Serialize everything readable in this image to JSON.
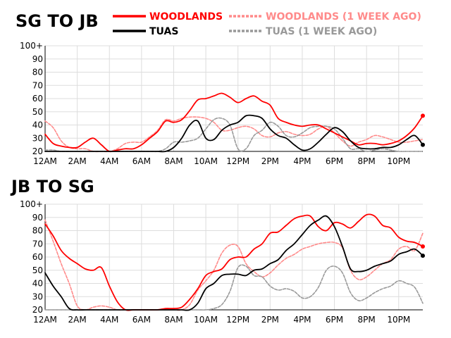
{
  "legend": [
    {
      "label": "WOODLANDS",
      "color": "#ff0000",
      "dash": false
    },
    {
      "label": "TUAS",
      "color": "#000000",
      "dash": false
    },
    {
      "label": "WOODLANDS (1 WEEK AGO)",
      "color": "#ff8a8a",
      "dash": true
    },
    {
      "label": "TUAS (1 WEEK AGO)",
      "color": "#999999",
      "dash": true
    }
  ],
  "chart_data": [
    {
      "type": "line",
      "title": "SG TO JB",
      "xlabel": "",
      "ylabel": "",
      "xlim": [
        0,
        23.5
      ],
      "ylim": [
        20,
        100
      ],
      "grid": true,
      "yticks": [
        "20",
        "30",
        "40",
        "50",
        "60",
        "70",
        "80",
        "90",
        "100+"
      ],
      "xticks": [
        "12AM",
        "2AM",
        "4AM",
        "6AM",
        "8AM",
        "10AM",
        "12PM",
        "2PM",
        "4PM",
        "6PM",
        "8PM",
        "10PM"
      ],
      "series": [
        {
          "name": "WOODLANDS",
          "color": "#ff0000",
          "dash": false,
          "end_dot": true,
          "x": [
            0,
            0.5,
            1,
            1.5,
            2,
            2.5,
            3,
            3.5,
            4,
            4.5,
            5,
            5.5,
            6,
            6.5,
            7,
            7.5,
            8,
            8.5,
            9,
            9.5,
            10,
            10.5,
            11,
            11.5,
            12,
            12.5,
            13,
            13.5,
            14,
            14.5,
            15,
            15.5,
            16,
            16.5,
            17,
            17.5,
            18,
            18.5,
            19,
            19.5,
            20,
            20.5,
            21,
            21.5,
            22,
            22.5,
            23,
            23.5
          ],
          "y": [
            33,
            26,
            24,
            23,
            23,
            27,
            30,
            25,
            20,
            21,
            22,
            22,
            25,
            30,
            35,
            43,
            42,
            44,
            51,
            59,
            60,
            62,
            64,
            61,
            57,
            60,
            62,
            58,
            55,
            45,
            42,
            40,
            39,
            40,
            40,
            37,
            34,
            31,
            28,
            25,
            26,
            26,
            25,
            26,
            28,
            32,
            38,
            47
          ]
        },
        {
          "name": "TUAS",
          "color": "#000000",
          "dash": false,
          "end_dot": true,
          "x": [
            0,
            0.5,
            1,
            1.5,
            2,
            2.5,
            3,
            3.5,
            4,
            4.5,
            5,
            5.5,
            6,
            6.5,
            7,
            7.5,
            8,
            8.5,
            9,
            9.5,
            10,
            10.5,
            11,
            11.5,
            12,
            12.5,
            13,
            13.5,
            14,
            14.5,
            15,
            15.5,
            16,
            16.5,
            17,
            17.5,
            18,
            18.5,
            19,
            19.5,
            20,
            20.5,
            21,
            21.5,
            22,
            22.5,
            23,
            23.5
          ],
          "y": [
            20,
            20,
            20,
            20,
            20,
            20,
            20,
            20,
            20,
            20,
            20,
            20,
            20,
            20,
            20,
            20,
            23,
            30,
            40,
            43,
            30,
            29,
            36,
            40,
            42,
            47,
            47,
            45,
            37,
            32,
            30,
            25,
            21,
            22,
            27,
            33,
            38,
            35,
            28,
            23,
            22,
            22,
            23,
            23,
            25,
            29,
            32,
            25
          ]
        },
        {
          "name": "WOODLANDS (1 WEEK AGO)",
          "color": "#ff8a8a",
          "dash": true,
          "end_dot": false,
          "x": [
            0,
            0.5,
            1,
            1.5,
            2,
            2.5,
            3,
            3.5,
            4,
            4.5,
            5,
            5.5,
            6,
            6.5,
            7,
            7.5,
            8,
            8.5,
            9,
            9.5,
            10,
            10.5,
            11,
            11.5,
            12,
            12.5,
            13,
            13.5,
            14,
            14.5,
            15,
            15.5,
            16,
            16.5,
            17,
            17.5,
            18,
            18.5,
            19,
            19.5,
            20,
            20.5,
            21,
            21.5,
            22,
            22.5,
            23,
            23.5
          ],
          "y": [
            43,
            38,
            28,
            23,
            22,
            22,
            20,
            20,
            20,
            22,
            26,
            27,
            27,
            31,
            36,
            44,
            43,
            45,
            46,
            46,
            45,
            42,
            36,
            36,
            38,
            39,
            37,
            32,
            31,
            34,
            35,
            33,
            32,
            33,
            37,
            39,
            34,
            28,
            24,
            27,
            29,
            32,
            31,
            29,
            27,
            27,
            28,
            29
          ]
        },
        {
          "name": "TUAS (1 WEEK AGO)",
          "color": "#999999",
          "dash": true,
          "end_dot": false,
          "x": [
            0,
            0.5,
            1,
            1.5,
            2,
            2.5,
            3,
            3.5,
            4,
            4.5,
            5,
            5.5,
            6,
            6.5,
            7,
            7.5,
            8,
            8.5,
            9,
            9.5,
            10,
            10.5,
            11,
            11.5,
            12,
            12.5,
            13,
            13.5,
            14,
            14.5,
            15,
            15.5,
            16,
            16.5,
            17,
            17.5,
            18,
            18.5,
            19,
            19.5,
            20,
            20.5,
            21,
            21.5,
            22,
            22.5,
            23,
            23.5
          ],
          "y": [
            21,
            21,
            20,
            20,
            20,
            20,
            20,
            20,
            20,
            20,
            20,
            20,
            20,
            20,
            20,
            22,
            27,
            27,
            28,
            30,
            37,
            44,
            45,
            40,
            22,
            22,
            32,
            36,
            42,
            39,
            32,
            31,
            34,
            38,
            39,
            39,
            37,
            30,
            22,
            22,
            20,
            21,
            22,
            21,
            20,
            20,
            20,
            20
          ]
        }
      ]
    },
    {
      "type": "line",
      "title": "JB TO SG",
      "xlabel": "",
      "ylabel": "",
      "xlim": [
        0,
        23.5
      ],
      "ylim": [
        20,
        100
      ],
      "grid": true,
      "yticks": [
        "20",
        "30",
        "40",
        "50",
        "60",
        "70",
        "80",
        "90",
        "100+"
      ],
      "xticks": [
        "12AM",
        "2AM",
        "4AM",
        "6AM",
        "8AM",
        "10AM",
        "12PM",
        "2PM",
        "4PM",
        "6PM",
        "8PM",
        "10PM"
      ],
      "series": [
        {
          "name": "WOODLANDS",
          "color": "#ff0000",
          "dash": false,
          "end_dot": true,
          "x": [
            0,
            0.5,
            1,
            1.5,
            2,
            2.5,
            3,
            3.5,
            4,
            4.5,
            5,
            5.5,
            6,
            6.5,
            7,
            7.5,
            8,
            8.5,
            9,
            9.5,
            10,
            10.5,
            11,
            11.5,
            12,
            12.5,
            13,
            13.5,
            14,
            14.5,
            15,
            15.5,
            16,
            16.5,
            17,
            17.5,
            18,
            18.5,
            19,
            19.5,
            20,
            20.5,
            21,
            21.5,
            22,
            22.5,
            23,
            23.5
          ],
          "y": [
            85,
            76,
            65,
            59,
            55,
            51,
            50,
            52,
            38,
            26,
            20,
            20,
            20,
            20,
            20,
            21,
            21,
            22,
            28,
            36,
            46,
            49,
            51,
            58,
            60,
            60,
            66,
            70,
            78,
            79,
            84,
            89,
            91,
            91,
            83,
            80,
            86,
            85,
            82,
            87,
            92,
            91,
            84,
            82,
            75,
            72,
            71,
            68
          ]
        },
        {
          "name": "TUAS",
          "color": "#000000",
          "dash": false,
          "end_dot": true,
          "x": [
            0,
            0.5,
            1,
            1.5,
            2,
            2.5,
            3,
            3.5,
            4,
            4.5,
            5,
            5.5,
            6,
            6.5,
            7,
            7.5,
            8,
            8.5,
            9,
            9.5,
            10,
            10.5,
            11,
            11.5,
            12,
            12.5,
            13,
            13.5,
            14,
            14.5,
            15,
            15.5,
            16,
            16.5,
            17,
            17.5,
            18,
            18.5,
            19,
            19.5,
            20,
            20.5,
            21,
            21.5,
            22,
            22.5,
            23,
            23.5
          ],
          "y": [
            48,
            38,
            30,
            21,
            20,
            20,
            20,
            20,
            20,
            20,
            20,
            20,
            20,
            20,
            20,
            20,
            20,
            20,
            20,
            25,
            36,
            40,
            46,
            47,
            47,
            46,
            50,
            51,
            55,
            58,
            65,
            70,
            77,
            84,
            88,
            91,
            83,
            68,
            51,
            49,
            50,
            53,
            55,
            57,
            62,
            64,
            66,
            61
          ]
        },
        {
          "name": "WOODLANDS (1 WEEK AGO)",
          "color": "#ff8a8a",
          "dash": true,
          "end_dot": false,
          "x": [
            0,
            0.5,
            1,
            1.5,
            2,
            2.5,
            3,
            3.5,
            4,
            4.5,
            5,
            5.5,
            6,
            6.5,
            7,
            7.5,
            8,
            8.5,
            9,
            9.5,
            10,
            10.5,
            11,
            11.5,
            12,
            12.5,
            13,
            13.5,
            14,
            14.5,
            15,
            15.5,
            16,
            16.5,
            17,
            17.5,
            18,
            18.5,
            19,
            19.5,
            20,
            20.5,
            21,
            21.5,
            22,
            22.5,
            23,
            23.5
          ],
          "y": [
            88,
            72,
            55,
            40,
            23,
            20,
            22,
            23,
            22,
            20,
            20,
            20,
            20,
            20,
            20,
            20,
            20,
            20,
            24,
            35,
            42,
            50,
            63,
            69,
            68,
            55,
            49,
            45,
            48,
            54,
            59,
            62,
            66,
            68,
            70,
            71,
            71,
            67,
            50,
            43,
            45,
            50,
            55,
            58,
            66,
            68,
            65,
            78
          ]
        },
        {
          "name": "TUAS (1 WEEK AGO)",
          "color": "#999999",
          "dash": true,
          "end_dot": false,
          "x": [
            0,
            0.5,
            1,
            1.5,
            2,
            2.5,
            3,
            3.5,
            4,
            4.5,
            5,
            5.5,
            6,
            6.5,
            7,
            7.5,
            8,
            8.5,
            9,
            9.5,
            10,
            10.5,
            11,
            11.5,
            12,
            12.5,
            13,
            13.5,
            14,
            14.5,
            15,
            15.5,
            16,
            16.5,
            17,
            17.5,
            18,
            18.5,
            19,
            19.5,
            20,
            20.5,
            21,
            21.5,
            22,
            22.5,
            23,
            23.5
          ],
          "y": [
            20,
            20,
            20,
            20,
            20,
            20,
            20,
            20,
            20,
            20,
            20,
            20,
            20,
            20,
            20,
            20,
            20,
            20,
            20,
            20,
            20,
            21,
            24,
            34,
            52,
            53,
            46,
            45,
            38,
            35,
            36,
            34,
            29,
            30,
            37,
            50,
            53,
            48,
            33,
            27,
            29,
            33,
            36,
            38,
            42,
            40,
            37,
            25
          ]
        }
      ]
    }
  ]
}
